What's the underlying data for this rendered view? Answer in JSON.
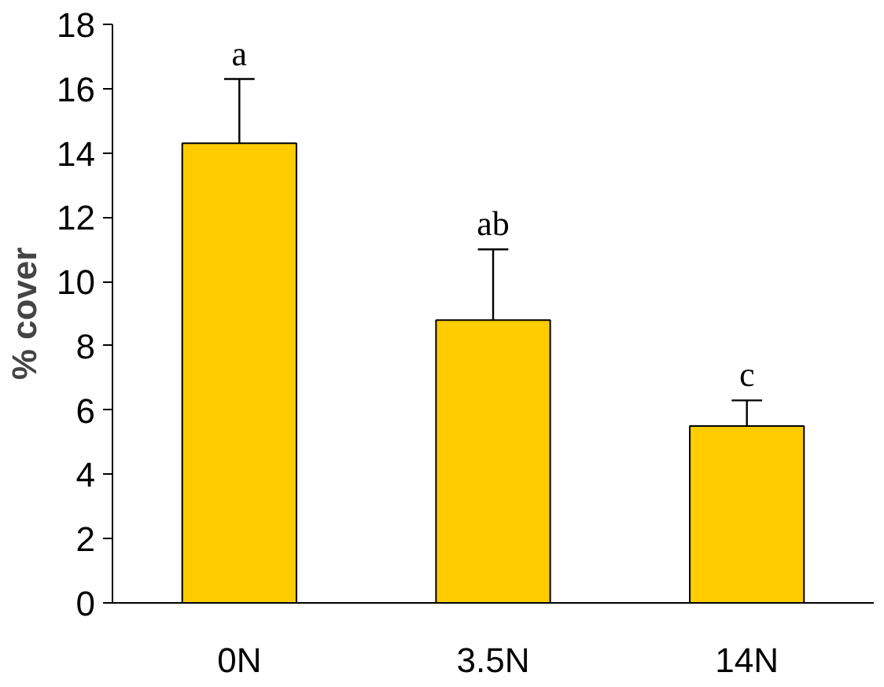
{
  "chart_data": {
    "type": "bar",
    "ylabel": "% cover",
    "categories": [
      "0N",
      "3.5N",
      "14N"
    ],
    "values": [
      14.3,
      8.8,
      5.5
    ],
    "errors": [
      [
        14.3,
        16.3
      ],
      [
        8.8,
        11.0
      ],
      [
        5.5,
        6.3
      ]
    ],
    "color": "#ffcc00",
    "ylim": [
      0,
      18
    ],
    "yticks": [
      0,
      2,
      4,
      6,
      8,
      10,
      12,
      14,
      16,
      18
    ],
    "annotations": [
      {
        "text": "a",
        "x": "0N",
        "y": 16.3
      },
      {
        "text": "ab",
        "x": "3.5N",
        "y": 11.0
      },
      {
        "text": "c",
        "x": "14N",
        "y": 6.3
      }
    ]
  }
}
